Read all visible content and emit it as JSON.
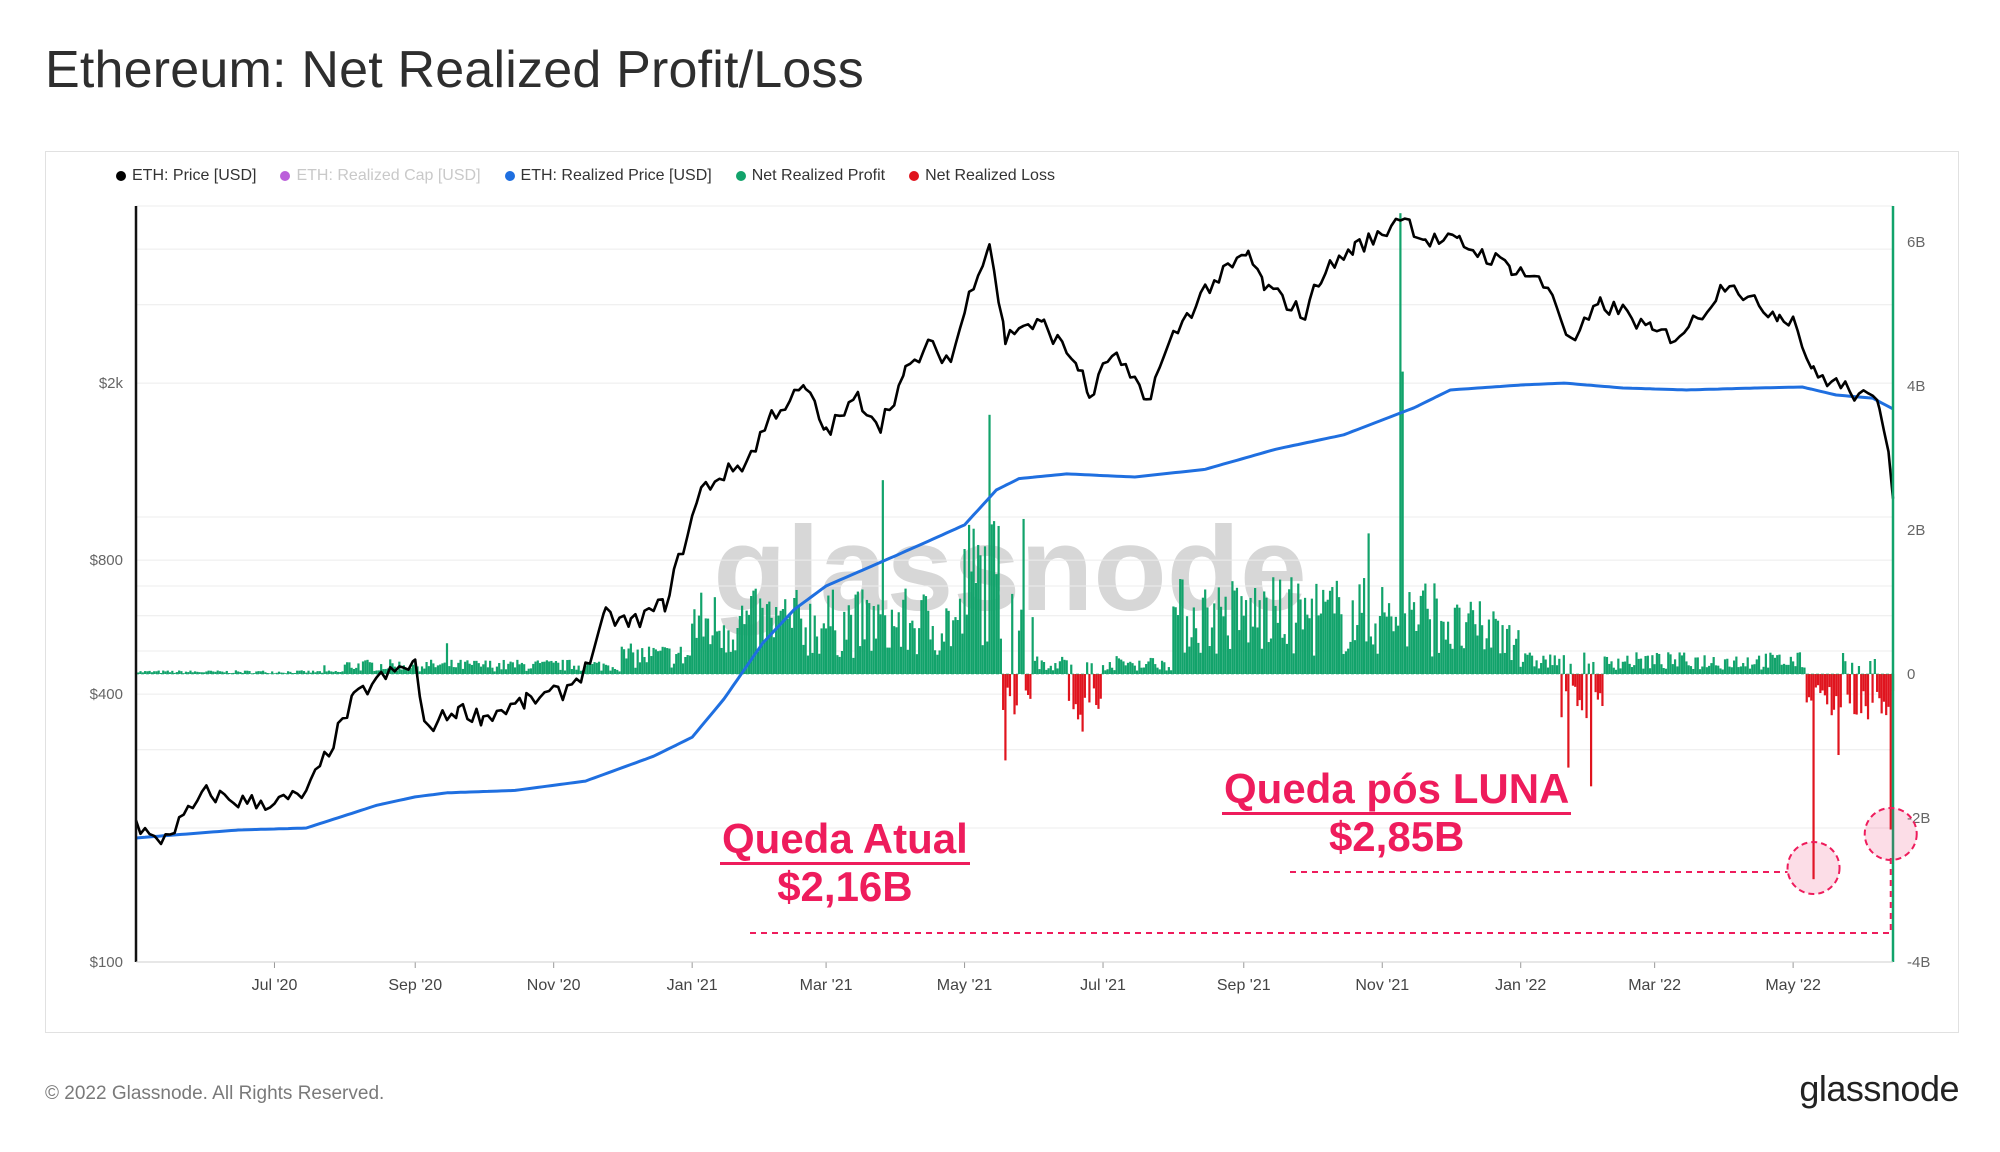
{
  "title": "Ethereum: Net Realized Profit/Loss",
  "legend": [
    {
      "label": "ETH: Price [USD]",
      "color": "#000000",
      "faded": false
    },
    {
      "label": "ETH: Realized Cap [USD]",
      "color": "#b44fd6",
      "faded": true
    },
    {
      "label": "ETH: Realized Price [USD]",
      "color": "#1f6fe0",
      "faded": false
    },
    {
      "label": "Net Realized Profit",
      "color": "#12a36b",
      "faded": false
    },
    {
      "label": "Net Realized Loss",
      "color": "#e0141e",
      "faded": false
    }
  ],
  "watermark": "glassnode",
  "footer": "© 2022 Glassnode. All Rights Reserved.",
  "brand": "glassnode",
  "annotations": {
    "current": {
      "line1": "Queda Atual",
      "line2": "$2,16B"
    },
    "luna": {
      "line1": "Queda pós LUNA",
      "line2": "$2,85B"
    }
  },
  "chart_data": {
    "type": "line",
    "x_start": "2020-05-01",
    "x_end": "2022-06-14",
    "x_ticks": [
      "Jul '20",
      "Sep '20",
      "Nov '20",
      "Jan '21",
      "Mar '21",
      "May '21",
      "Jul '21",
      "Sep '21",
      "Nov '21",
      "Jan '22",
      "Mar '22",
      "May '22"
    ],
    "y_left": {
      "label": "",
      "scale": "log",
      "range": [
        100,
        5000
      ],
      "ticks": [
        "$100",
        "$400",
        "$800",
        "$2k"
      ]
    },
    "y_right": {
      "label": "",
      "range": [
        -4,
        6.5
      ],
      "unit": "B",
      "ticks": [
        "-4B",
        "-2B",
        "0",
        "2B",
        "4B",
        "6B"
      ]
    },
    "series": [
      {
        "name": "ETH: Price [USD]",
        "axis": "left",
        "color": "#000000",
        "points": [
          [
            "2020-05-01",
            205
          ],
          [
            "2020-05-10",
            185
          ],
          [
            "2020-05-20",
            205
          ],
          [
            "2020-06-01",
            240
          ],
          [
            "2020-06-15",
            230
          ],
          [
            "2020-07-01",
            228
          ],
          [
            "2020-07-15",
            238
          ],
          [
            "2020-07-25",
            300
          ],
          [
            "2020-08-05",
            390
          ],
          [
            "2020-08-15",
            430
          ],
          [
            "2020-09-01",
            470
          ],
          [
            "2020-09-05",
            335
          ],
          [
            "2020-09-20",
            370
          ],
          [
            "2020-10-01",
            355
          ],
          [
            "2020-10-20",
            385
          ],
          [
            "2020-11-05",
            405
          ],
          [
            "2020-11-15",
            455
          ],
          [
            "2020-11-24",
            600
          ],
          [
            "2020-12-05",
            575
          ],
          [
            "2020-12-20",
            640
          ],
          [
            "2021-01-05",
            1150
          ],
          [
            "2021-01-15",
            1250
          ],
          [
            "2021-01-25",
            1330
          ],
          [
            "2021-02-05",
            1700
          ],
          [
            "2021-02-20",
            1950
          ],
          [
            "2021-03-01",
            1550
          ],
          [
            "2021-03-15",
            1850
          ],
          [
            "2021-03-25",
            1620
          ],
          [
            "2021-04-05",
            2100
          ],
          [
            "2021-04-15",
            2420
          ],
          [
            "2021-04-25",
            2250
          ],
          [
            "2021-05-05",
            3400
          ],
          [
            "2021-05-12",
            4150
          ],
          [
            "2021-05-19",
            2500
          ],
          [
            "2021-05-25",
            2700
          ],
          [
            "2021-06-05",
            2700
          ],
          [
            "2021-06-20",
            2200
          ],
          [
            "2021-06-25",
            1850
          ],
          [
            "2021-07-05",
            2350
          ],
          [
            "2021-07-20",
            1820
          ],
          [
            "2021-08-01",
            2550
          ],
          [
            "2021-08-15",
            3250
          ],
          [
            "2021-09-03",
            3900
          ],
          [
            "2021-09-10",
            3300
          ],
          [
            "2021-09-28",
            2850
          ],
          [
            "2021-10-05",
            3500
          ],
          [
            "2021-10-20",
            4050
          ],
          [
            "2021-11-01",
            4300
          ],
          [
            "2021-11-09",
            4800
          ],
          [
            "2021-11-20",
            4200
          ],
          [
            "2021-12-05",
            4150
          ],
          [
            "2021-12-15",
            3900
          ],
          [
            "2021-12-28",
            3650
          ],
          [
            "2022-01-05",
            3500
          ],
          [
            "2022-01-15",
            3200
          ],
          [
            "2022-01-23",
            2450
          ],
          [
            "2022-02-05",
            3000
          ],
          [
            "2022-02-15",
            2900
          ],
          [
            "2022-02-28",
            2600
          ],
          [
            "2022-03-10",
            2550
          ],
          [
            "2022-03-20",
            2800
          ],
          [
            "2022-04-03",
            3450
          ],
          [
            "2022-04-12",
            3050
          ],
          [
            "2022-04-25",
            2850
          ],
          [
            "2022-05-01",
            2800
          ],
          [
            "2022-05-10",
            2100
          ],
          [
            "2022-05-20",
            2000
          ],
          [
            "2022-06-01",
            1850
          ],
          [
            "2022-06-08",
            1800
          ],
          [
            "2022-06-12",
            1450
          ],
          [
            "2022-06-14",
            1100
          ]
        ]
      },
      {
        "name": "ETH: Realized Price [USD]",
        "axis": "left",
        "color": "#1f6fe0",
        "points": [
          [
            "2020-05-01",
            190
          ],
          [
            "2020-06-15",
            198
          ],
          [
            "2020-07-15",
            200
          ],
          [
            "2020-08-15",
            225
          ],
          [
            "2020-09-01",
            235
          ],
          [
            "2020-09-15",
            240
          ],
          [
            "2020-10-15",
            243
          ],
          [
            "2020-11-15",
            255
          ],
          [
            "2020-12-15",
            290
          ],
          [
            "2021-01-01",
            320
          ],
          [
            "2021-01-15",
            390
          ],
          [
            "2021-02-01",
            520
          ],
          [
            "2021-02-15",
            620
          ],
          [
            "2021-03-01",
            700
          ],
          [
            "2021-04-01",
            820
          ],
          [
            "2021-05-01",
            960
          ],
          [
            "2021-05-15",
            1150
          ],
          [
            "2021-05-25",
            1220
          ],
          [
            "2021-06-15",
            1250
          ],
          [
            "2021-07-15",
            1230
          ],
          [
            "2021-08-15",
            1280
          ],
          [
            "2021-09-15",
            1420
          ],
          [
            "2021-10-15",
            1530
          ],
          [
            "2021-11-15",
            1760
          ],
          [
            "2021-12-01",
            1930
          ],
          [
            "2022-01-01",
            1980
          ],
          [
            "2022-01-20",
            2000
          ],
          [
            "2022-02-15",
            1950
          ],
          [
            "2022-03-15",
            1930
          ],
          [
            "2022-04-15",
            1950
          ],
          [
            "2022-05-05",
            1960
          ],
          [
            "2022-05-20",
            1880
          ],
          [
            "2022-06-05",
            1850
          ],
          [
            "2022-06-14",
            1750
          ]
        ]
      }
    ],
    "bars": {
      "name": "Net Realized Profit / Net Realized Loss",
      "axis": "right",
      "unit": "B",
      "profit_color": "#12a36b",
      "loss_color": "#e0141e",
      "notable": [
        {
          "date": "2021-05-12",
          "value": 3.6
        },
        {
          "date": "2021-11-09",
          "value": 6.4
        },
        {
          "date": "2021-11-10",
          "value": 4.2
        },
        {
          "date": "2021-05-19",
          "value": -1.2
        },
        {
          "date": "2021-06-22",
          "value": -0.8
        },
        {
          "date": "2022-01-22",
          "value": -1.3
        },
        {
          "date": "2022-05-10",
          "value": -2.85
        },
        {
          "date": "2022-06-13",
          "value": -2.16
        }
      ]
    }
  }
}
